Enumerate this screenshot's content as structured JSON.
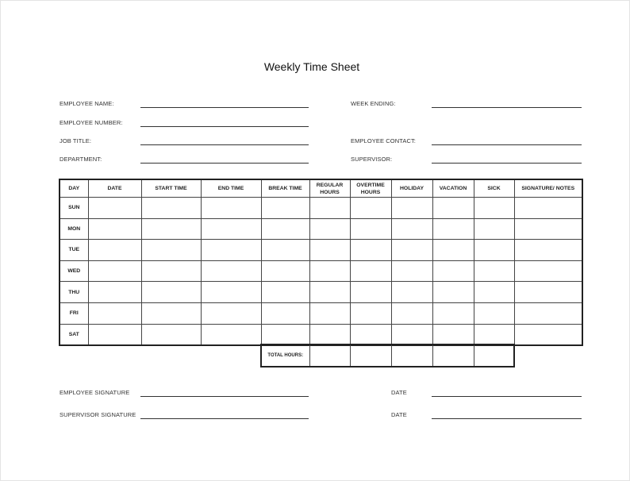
{
  "title": "Weekly Time Sheet",
  "fields_left": [
    {
      "label": "EMPLOYEE NAME:",
      "value": ""
    },
    {
      "label": "EMPLOYEE NUMBER:",
      "value": ""
    },
    {
      "label": "JOB TITLE:",
      "value": ""
    },
    {
      "label": "DEPARTMENT:",
      "value": ""
    }
  ],
  "fields_right": [
    {
      "label": "WEEK ENDING:",
      "value": ""
    },
    {
      "label": "EMPLOYEE CONTACT:",
      "value": ""
    },
    {
      "label": "SUPERVISOR:",
      "value": ""
    }
  ],
  "table": {
    "headers": [
      "DAY",
      "DATE",
      "START TIME",
      "END TIME",
      "BREAK TIME",
      "REGULAR HOURS",
      "OVERTIME HOURS",
      "HOLIDAY",
      "VACATION",
      "SICK",
      "SIGNATURE/ NOTES"
    ],
    "days": [
      "SUN",
      "MON",
      "TUE",
      "WED",
      "THU",
      "FRI",
      "SAT"
    ],
    "total_label": "TOTAL HOURS:"
  },
  "signatures": [
    {
      "label": "EMPLOYEE SIGNATURE",
      "date_label": "DATE"
    },
    {
      "label": "SUPERVISOR SIGNATURE",
      "date_label": "DATE"
    }
  ]
}
